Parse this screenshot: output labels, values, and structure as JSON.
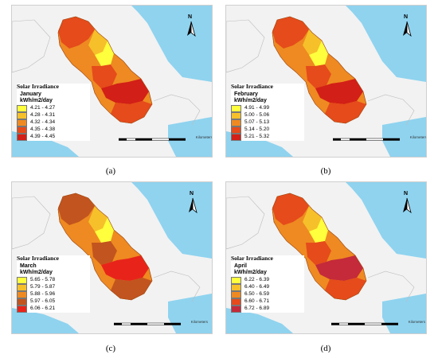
{
  "legend_title": "Solar Irradiance",
  "unit": "kWh/m2/day",
  "scale_unit": "Kilometers",
  "north_label": "N",
  "panels": [
    {
      "caption": "(a)",
      "month": "January",
      "classes": [
        {
          "label": "4.21 - 4.27",
          "color": "#ffff3d"
        },
        {
          "label": "4.28 - 4.31",
          "color": "#f6c02b"
        },
        {
          "label": "4.32 - 4.34",
          "color": "#ee8a21"
        },
        {
          "label": "4.35 - 4.38",
          "color": "#e54b1b"
        },
        {
          "label": "4.39 - 4.45",
          "color": "#d21f17"
        }
      ]
    },
    {
      "caption": "(b)",
      "month": "February",
      "classes": [
        {
          "label": "4.91 - 4.99",
          "color": "#ffff3d"
        },
        {
          "label": "5.00 - 5.06",
          "color": "#f6c02b"
        },
        {
          "label": "5.07 - 5.13",
          "color": "#ee8a21"
        },
        {
          "label": "5.14 - 5.20",
          "color": "#e54b1b"
        },
        {
          "label": "5.21 - 5.32",
          "color": "#d21f17"
        }
      ]
    },
    {
      "caption": "(c)",
      "month": "March",
      "classes": [
        {
          "label": "5.65 - 5.78",
          "color": "#ffff3d"
        },
        {
          "label": "5.79 - 5.87",
          "color": "#f6c02b"
        },
        {
          "label": "5.88 - 5.96",
          "color": "#ee8a21"
        },
        {
          "label": "5.97 - 6.05",
          "color": "#c2541f"
        },
        {
          "label": "6.06 - 6.21",
          "color": "#e8241a"
        }
      ]
    },
    {
      "caption": "(d)",
      "month": "April",
      "classes": [
        {
          "label": "6.22 - 6.39",
          "color": "#ffff3d"
        },
        {
          "label": "6.40 - 6.49",
          "color": "#f6c02b"
        },
        {
          "label": "6.50 - 6.59",
          "color": "#ee8a21"
        },
        {
          "label": "6.60 - 6.71",
          "color": "#e54b1b"
        },
        {
          "label": "6.72 - 6.89",
          "color": "#c42a3a"
        }
      ]
    }
  ],
  "colors": {
    "sea": "#8fd3ef",
    "land": "#f2f2f2",
    "border": "#bdbdbd"
  }
}
